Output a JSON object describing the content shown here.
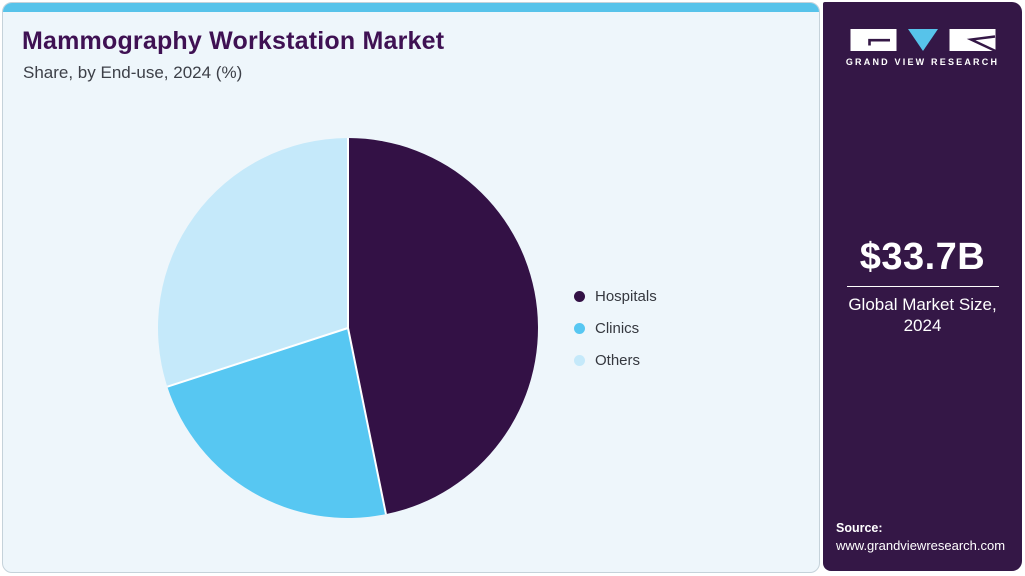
{
  "header": {
    "title": "Mammography Workstation Market",
    "subtitle": "Share, by End-use, 2024 (%)"
  },
  "chart_data": {
    "type": "pie",
    "title": "Mammography Workstation Market Share, by End-use, 2024 (%)",
    "categories": [
      "Hospitals",
      "Clinics",
      "Others"
    ],
    "values": [
      46.8,
      23.2,
      30.0
    ],
    "unit": "%",
    "colors": [
      "#331145",
      "#57c7f2",
      "#c5e9fa"
    ],
    "start_angle_deg": 0,
    "direction": "clockwise",
    "legend_position": "right",
    "slice_border_color": "#ffffff"
  },
  "sidebar": {
    "background": "#341746",
    "logo_text": "GRAND VIEW RESEARCH",
    "market_size": "$33.7B",
    "market_caption_line1": "Global Market Size,",
    "market_caption_line2": "2024",
    "source_label": "Source:",
    "source_url": "www.grandviewresearch.com"
  },
  "accent_bar_color": "#57c3ea"
}
